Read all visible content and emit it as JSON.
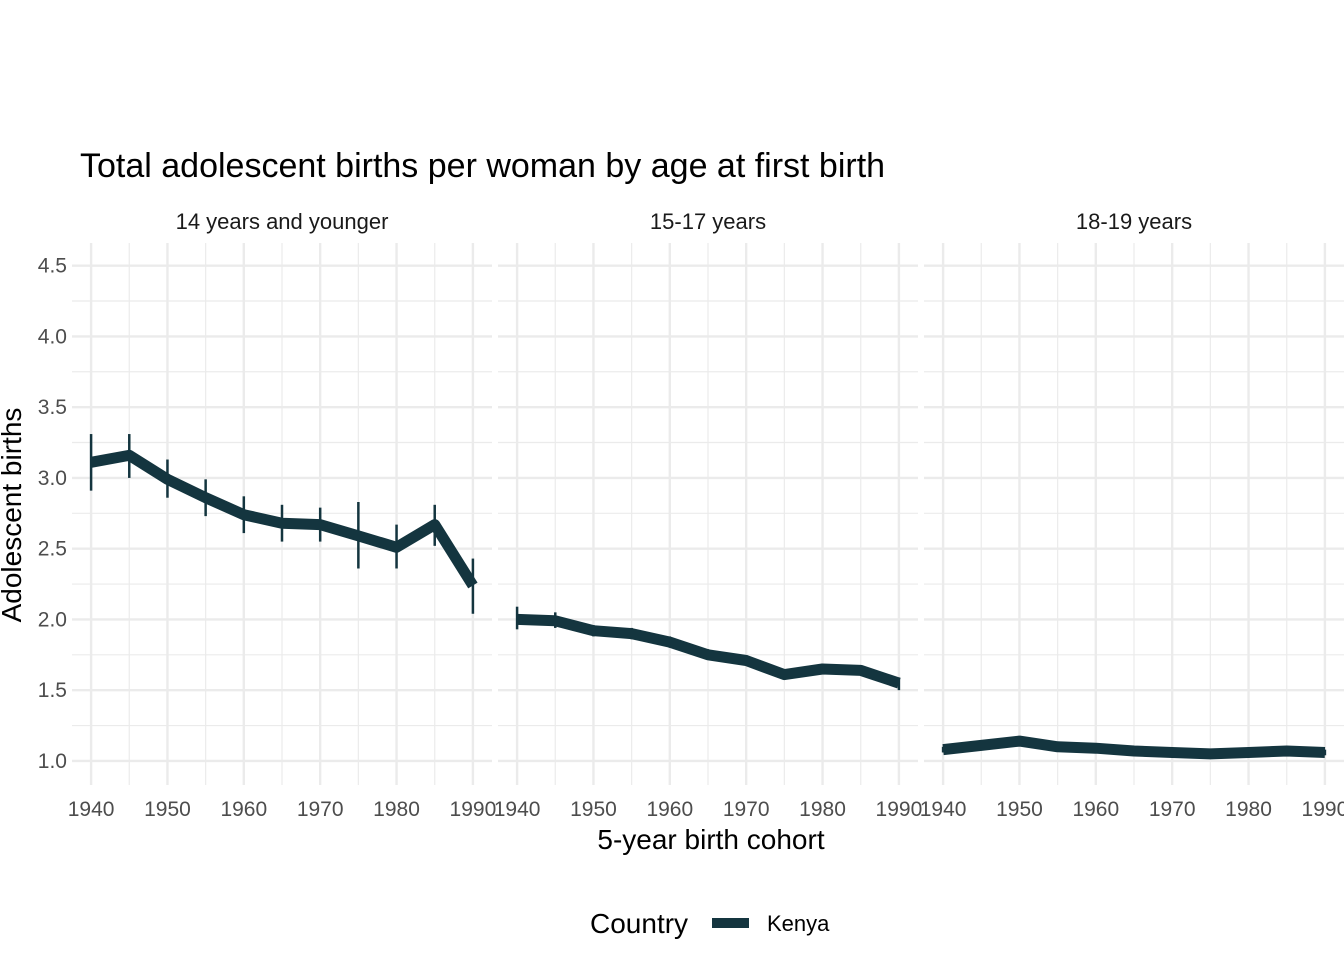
{
  "chart_data": {
    "type": "line",
    "title": "Total adolescent births per woman by age at first birth",
    "xlabel": "5-year birth cohort",
    "ylabel": "Adolescent births",
    "x_ticks": [
      1940,
      1950,
      1960,
      1970,
      1980,
      1990
    ],
    "y_ticks": [
      1.0,
      1.5,
      2.0,
      2.5,
      3.0,
      3.5,
      4.0,
      4.5
    ],
    "y_tick_labels": [
      "1.0",
      "1.5",
      "2.0",
      "2.5",
      "3.0",
      "3.5",
      "4.0",
      "4.5"
    ],
    "xlim": [
      1937.5,
      1992.5
    ],
    "ylim": [
      0.83,
      4.66
    ],
    "grid": true,
    "legend": {
      "title": "Country",
      "position": "bottom",
      "entries": [
        "Kenya"
      ]
    },
    "colors": {
      "Kenya": "#14353f",
      "grid": "#ebebeb"
    },
    "x": [
      1940,
      1945,
      1950,
      1955,
      1960,
      1965,
      1970,
      1975,
      1980,
      1985,
      1990
    ],
    "panels": [
      {
        "label": "14 years and younger",
        "series": [
          {
            "name": "Kenya",
            "values": [
              3.11,
              3.16,
              2.99,
              2.86,
              2.74,
              2.68,
              2.67,
              2.59,
              2.51,
              2.67,
              2.24
            ],
            "lower": [
              2.91,
              3.0,
              2.86,
              2.73,
              2.61,
              2.55,
              2.55,
              2.36,
              2.36,
              2.52,
              2.04
            ],
            "upper": [
              3.31,
              3.31,
              3.13,
              2.99,
              2.87,
              2.81,
              2.79,
              2.83,
              2.67,
              2.81,
              2.43
            ]
          }
        ]
      },
      {
        "label": "15-17 years",
        "series": [
          {
            "name": "Kenya",
            "values": [
              2.0,
              1.99,
              1.92,
              1.9,
              1.84,
              1.75,
              1.71,
              1.61,
              1.65,
              1.64,
              1.55
            ],
            "lower": [
              1.93,
              1.94,
              1.88,
              1.86,
              1.8,
              1.72,
              1.68,
              1.58,
              1.62,
              1.61,
              1.5
            ],
            "upper": [
              2.09,
              2.05,
              1.96,
              1.94,
              1.88,
              1.79,
              1.74,
              1.64,
              1.68,
              1.67,
              1.59
            ]
          }
        ]
      },
      {
        "label": "18-19 years",
        "series": [
          {
            "name": "Kenya",
            "values": [
              1.08,
              1.11,
              1.14,
              1.1,
              1.09,
              1.07,
              1.06,
              1.05,
              1.06,
              1.07,
              1.06
            ],
            "lower": [
              1.06,
              1.09,
              1.12,
              1.08,
              1.07,
              1.05,
              1.04,
              1.03,
              1.04,
              1.05,
              1.04
            ],
            "upper": [
              1.1,
              1.13,
              1.16,
              1.12,
              1.11,
              1.09,
              1.08,
              1.07,
              1.08,
              1.09,
              1.08
            ]
          }
        ]
      }
    ]
  }
}
